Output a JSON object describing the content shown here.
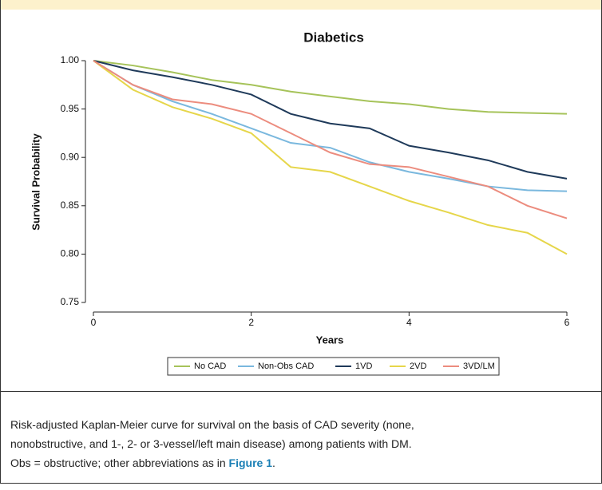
{
  "chart_data": {
    "type": "line",
    "title": "Diabetics",
    "x_label": "Years",
    "y_label": "Survival Probability",
    "x": [
      0,
      0.5,
      1,
      1.5,
      2,
      2.5,
      3,
      3.5,
      4,
      4.5,
      5,
      5.5,
      6
    ],
    "series": [
      {
        "name": "No CAD",
        "color": "#a6c35a",
        "values": [
          1.0,
          0.995,
          0.988,
          0.98,
          0.975,
          0.968,
          0.963,
          0.958,
          0.955,
          0.95,
          0.947,
          0.946,
          0.945
        ]
      },
      {
        "name": "Non-Obs CAD",
        "color": "#7ab8de",
        "values": [
          1.0,
          0.975,
          0.958,
          0.945,
          0.93,
          0.915,
          0.91,
          0.895,
          0.885,
          0.878,
          0.87,
          0.866,
          0.865
        ]
      },
      {
        "name": "1VD",
        "color": "#1f3a5a",
        "values": [
          1.0,
          0.99,
          0.983,
          0.975,
          0.965,
          0.945,
          0.935,
          0.93,
          0.912,
          0.905,
          0.897,
          0.885,
          0.878
        ]
      },
      {
        "name": "2VD",
        "color": "#e6d64a",
        "values": [
          1.0,
          0.97,
          0.952,
          0.94,
          0.925,
          0.89,
          0.885,
          0.87,
          0.855,
          0.843,
          0.83,
          0.822,
          0.8
        ]
      },
      {
        "name": "3VD/LM",
        "color": "#ec8c7e",
        "values": [
          1.0,
          0.975,
          0.96,
          0.955,
          0.945,
          0.925,
          0.905,
          0.893,
          0.89,
          0.88,
          0.87,
          0.85,
          0.837
        ]
      }
    ],
    "xlim": [
      0,
      6
    ],
    "xticks": [
      0,
      2,
      4,
      6
    ],
    "ylim": [
      0.75,
      1.0
    ],
    "yticks": [
      {
        "value": 0.75,
        "label": "0.75"
      },
      {
        "value": 0.8,
        "label": "0.80"
      },
      {
        "value": 0.85,
        "label": "0.85"
      },
      {
        "value": 0.9,
        "label": "0.90"
      },
      {
        "value": 0.95,
        "label": "0.95"
      },
      {
        "value": 1.0,
        "label": "1.00"
      }
    ],
    "grid": false,
    "legend": "bottom"
  },
  "caption": {
    "lines": [
      "Risk-adjusted Kaplan-Meier curve for survival on the basis of CAD severity (none,",
      "nonobstructive, and 1-, 2- or 3-vessel/left main disease) among patients with DM."
    ],
    "last_before": "Obs = obstructive; other abbreviations as in ",
    "link": "Figure 1",
    "last_after": "."
  }
}
